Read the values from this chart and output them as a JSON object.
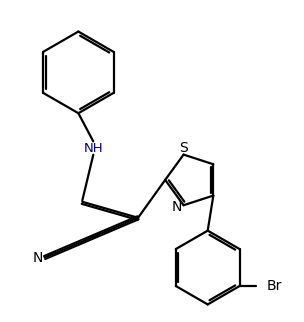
{
  "bg_color": "#ffffff",
  "line_color": "#000000",
  "text_color": "#000000",
  "nh_color": "#00008B",
  "label_S": "S",
  "label_N_thiazole": "N",
  "label_NH": "NH",
  "label_N_nitrile": "N",
  "label_Br": "Br",
  "line_width": 1.6,
  "figsize": [
    3.04,
    3.22
  ],
  "dpi": 100,
  "xlim": [
    0,
    10
  ],
  "ylim": [
    0,
    10.6
  ]
}
